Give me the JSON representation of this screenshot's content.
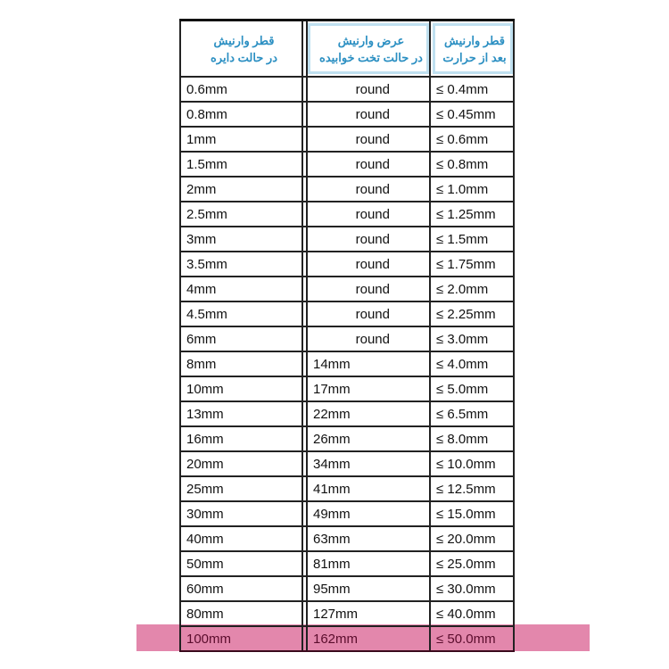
{
  "headers": [
    "قطر وارنیش در حالت دایره",
    "عرض وارنیش در حالت تخت خوابیده",
    "قطر وارنیش بعد از حرارت"
  ],
  "header_lines": [
    [
      "قطر وارنیش",
      "در حالت دایره"
    ],
    [
      "عرض وارنیش",
      "در حالت تخت خوابیده"
    ],
    [
      "قطر وارنیش",
      "بعد از حرارت"
    ]
  ],
  "rows": [
    [
      "0.6mm",
      "round",
      "≤ 0.4mm"
    ],
    [
      "0.8mm",
      "round",
      "≤ 0.45mm"
    ],
    [
      "1mm",
      "round",
      "≤ 0.6mm"
    ],
    [
      "1.5mm",
      "round",
      "≤ 0.8mm"
    ],
    [
      "2mm",
      "round",
      "≤ 1.0mm"
    ],
    [
      "2.5mm",
      "round",
      "≤ 1.25mm"
    ],
    [
      "3mm",
      "round",
      "≤ 1.5mm"
    ],
    [
      "3.5mm",
      "round",
      "≤ 1.75mm"
    ],
    [
      "4mm",
      "round",
      "≤ 2.0mm"
    ],
    [
      "4.5mm",
      "round",
      "≤ 2.25mm"
    ],
    [
      "6mm",
      "round",
      "≤ 3.0mm"
    ],
    [
      "8mm",
      "14mm",
      "≤ 4.0mm"
    ],
    [
      "10mm",
      "17mm",
      "≤ 5.0mm"
    ],
    [
      "13mm",
      "22mm",
      "≤ 6.5mm"
    ],
    [
      "16mm",
      "26mm",
      "≤ 8.0mm"
    ],
    [
      "20mm",
      "34mm",
      "≤ 10.0mm"
    ],
    [
      "25mm",
      "41mm",
      "≤ 12.5mm"
    ],
    [
      "30mm",
      "49mm",
      "≤ 15.0mm"
    ],
    [
      "40mm",
      "63mm",
      "≤ 20.0mm"
    ],
    [
      "50mm",
      "81mm",
      "≤ 25.0mm"
    ],
    [
      "60mm",
      "95mm",
      "≤ 30.0mm"
    ],
    [
      "80mm",
      "127mm",
      "≤ 40.0mm"
    ],
    [
      "100mm",
      "162mm",
      "≤ 50.0mm"
    ]
  ],
  "highlighted_row": 22,
  "colors": {
    "header_text": "#2b8fc2",
    "highlight": "#e07aa3"
  }
}
